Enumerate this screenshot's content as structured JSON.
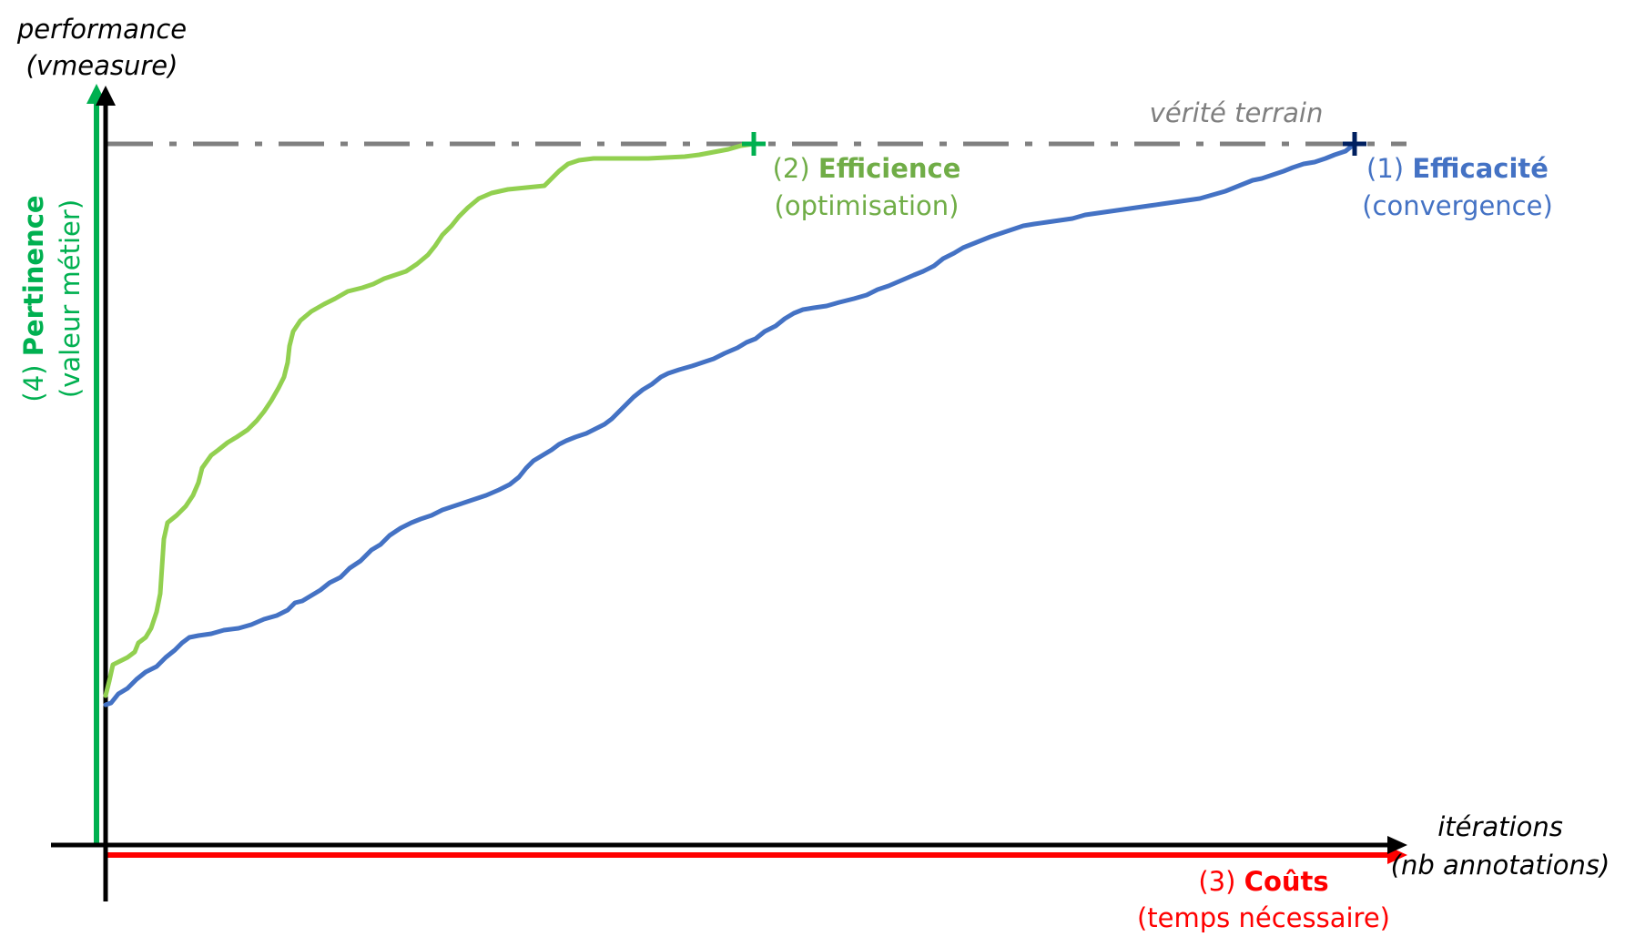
{
  "axes": {
    "y_label_line1": "performance",
    "y_label_line2": "(vmeasure)",
    "x_label_line1": "itérations",
    "x_label_line2": "(nb annotations)"
  },
  "reference": {
    "label": "vérité terrain"
  },
  "annotations": {
    "efficacite": {
      "number": "(1)",
      "title": "Efficacité",
      "subtitle": "(convergence)",
      "color": "#4472C4"
    },
    "efficience": {
      "number": "(2)",
      "title": "Efficience",
      "subtitle": "(optimisation)",
      "color": "#70AD47"
    },
    "couts": {
      "number": "(3)",
      "title": "Coûts",
      "subtitle": "(temps nécessaire)",
      "color": "#FF0000"
    },
    "pertinence": {
      "number": "(4)",
      "title": "Pertinence",
      "subtitle": "(valeur métier)",
      "color": "#00B050"
    }
  },
  "colors": {
    "axis": "#000000",
    "reference_line": "#808080",
    "efficience_curve": "#92D050",
    "efficacite_curve": "#4472C4",
    "efficience_marker": "#00B050",
    "efficacite_marker": "#002060"
  }
}
